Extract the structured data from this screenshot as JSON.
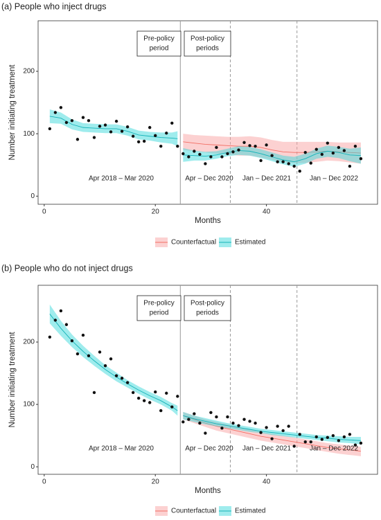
{
  "chart_data": [
    {
      "type": "line",
      "title": "(a) People who inject drugs",
      "xlabel": "Months",
      "ylabel": "Number initiating treatment",
      "xlim": [
        -1.1,
        60
      ],
      "ylim": [
        -13,
        281
      ],
      "xticks": [
        0,
        20,
        40
      ],
      "yticks": [
        0,
        100,
        200
      ],
      "policy_change": 24.5,
      "period_breaks": [
        33.5,
        45.5
      ],
      "pre_box": [
        "Pre-policy",
        "period"
      ],
      "post_box": [
        "Post-policy",
        "periods"
      ],
      "period_labels": [
        "Apr 2018 – Mar 2020",
        "Apr – Dec 2020",
        "Jan – Dec 2021",
        "Jan – Dec 2022"
      ],
      "observed": {
        "x": [
          1,
          2,
          3,
          4,
          5,
          6,
          7,
          8,
          9,
          10,
          11,
          12,
          13,
          14,
          15,
          16,
          17,
          18,
          19,
          20,
          21,
          22,
          23,
          24,
          25,
          26,
          27,
          28,
          29,
          30,
          31,
          32,
          33,
          34,
          35,
          36,
          37,
          38,
          39,
          40,
          41,
          42,
          43,
          44,
          45,
          46,
          47,
          48,
          49,
          50,
          51,
          52,
          53,
          54,
          55,
          56,
          57
        ],
        "values": [
          108,
          134,
          142,
          118,
          121,
          91,
          126,
          121,
          94,
          112,
          114,
          103,
          120,
          104,
          111,
          96,
          87,
          88,
          110,
          97,
          80,
          101,
          117,
          80,
          68,
          63,
          72,
          67,
          52,
          63,
          78,
          63,
          68,
          71,
          74,
          86,
          81,
          80,
          57,
          82,
          65,
          55,
          55,
          52,
          48,
          40,
          70,
          53,
          75,
          67,
          85,
          69,
          78,
          73,
          48,
          80,
          60
        ]
      },
      "series": [
        {
          "name": "Counterfactual",
          "color": "#f26d63",
          "fill": "#f9a3a3",
          "x": [
            25,
            27,
            29,
            31,
            33,
            35,
            37,
            39,
            41,
            43,
            45,
            47,
            49,
            51,
            53,
            55,
            57
          ],
          "values": [
            87,
            85,
            83,
            82,
            81,
            80,
            80,
            78,
            74,
            71,
            70,
            70,
            71,
            72,
            71,
            70,
            69
          ],
          "lower": [
            74,
            72,
            70,
            68,
            67,
            65,
            65,
            62,
            58,
            55,
            53,
            53,
            55,
            57,
            56,
            54,
            52
          ],
          "upper": [
            100,
            98,
            97,
            96,
            95,
            95,
            96,
            94,
            90,
            87,
            87,
            87,
            87,
            87,
            86,
            86,
            86
          ]
        },
        {
          "name": "Estimated",
          "color": "#14b3b8",
          "fill": "#3fd9dc",
          "x": [
            1,
            3,
            5,
            7,
            9,
            11,
            13,
            15,
            17,
            19,
            21,
            23,
            24,
            24.5,
            25,
            27,
            29,
            31,
            33,
            35,
            37,
            39,
            41,
            43,
            45,
            47,
            49,
            51,
            53,
            55,
            57
          ],
          "values": [
            128,
            125,
            115,
            110,
            109,
            108,
            108,
            104,
            98,
            96,
            94,
            93,
            92,
            null,
            66,
            65,
            64,
            66,
            70,
            73,
            72,
            68,
            63,
            58,
            55,
            60,
            68,
            72,
            70,
            66,
            65
          ],
          "lower": [
            117,
            116,
            107,
            103,
            102,
            101,
            101,
            97,
            91,
            89,
            86,
            84,
            80,
            null,
            55,
            57,
            57,
            60,
            64,
            66,
            65,
            61,
            56,
            51,
            47,
            52,
            60,
            63,
            61,
            56,
            52
          ],
          "upper": [
            139,
            134,
            123,
            117,
            116,
            115,
            115,
            111,
            105,
            103,
            102,
            102,
            104,
            null,
            77,
            73,
            71,
            72,
            76,
            80,
            79,
            75,
            70,
            65,
            63,
            68,
            76,
            81,
            79,
            76,
            78
          ]
        }
      ]
    },
    {
      "type": "line",
      "title": "(b) People who do not inject drugs",
      "xlabel": "Months",
      "ylabel": "Number initiating treatment",
      "xlim": [
        -1.1,
        60
      ],
      "ylim": [
        -12,
        291
      ],
      "xticks": [
        0,
        20,
        40
      ],
      "yticks": [
        0,
        100,
        200
      ],
      "policy_change": 24.5,
      "period_breaks": [
        33.5,
        45.5
      ],
      "pre_box": [
        "Pre-policy",
        "period"
      ],
      "post_box": [
        "Post-policy",
        "periods"
      ],
      "period_labels": [
        "Apr 2018 – Mar 2020",
        "Apr – Dec 2020",
        "Jan – Dec 2021",
        "Jan – Dec 2022"
      ],
      "observed": {
        "x": [
          1,
          2,
          3,
          4,
          5,
          6,
          7,
          8,
          9,
          10,
          11,
          12,
          13,
          14,
          15,
          16,
          17,
          18,
          19,
          20,
          21,
          22,
          23,
          24,
          25,
          26,
          27,
          28,
          29,
          30,
          31,
          32,
          33,
          34,
          35,
          36,
          37,
          38,
          39,
          40,
          41,
          42,
          43,
          44,
          45,
          46,
          47,
          48,
          49,
          50,
          51,
          52,
          53,
          54,
          55,
          56,
          57
        ],
        "values": [
          208,
          235,
          250,
          228,
          202,
          181,
          211,
          178,
          119,
          184,
          162,
          173,
          146,
          142,
          135,
          119,
          110,
          106,
          103,
          120,
          90,
          118,
          96,
          113,
          72,
          76,
          85,
          70,
          54,
          87,
          80,
          62,
          80,
          70,
          66,
          76,
          73,
          70,
          55,
          63,
          45,
          65,
          58,
          65,
          33,
          52,
          40,
          40,
          48,
          44,
          47,
          50,
          42,
          48,
          52,
          35,
          38
        ]
      },
      "series": [
        {
          "name": "Counterfactual",
          "color": "#f26d63",
          "fill": "#f9a3a3",
          "x": [
            25,
            27,
            29,
            31,
            33,
            35,
            37,
            39,
            41,
            43,
            45,
            47,
            49,
            51,
            53,
            55,
            57
          ],
          "values": [
            82,
            76,
            70,
            65,
            61,
            57,
            53,
            49,
            46,
            43,
            40,
            37,
            34,
            31,
            29,
            27,
            25
          ],
          "lower": [
            76,
            70,
            64,
            58,
            54,
            50,
            46,
            42,
            39,
            36,
            33,
            30,
            27,
            24,
            21,
            19,
            17
          ],
          "upper": [
            88,
            82,
            76,
            72,
            68,
            64,
            60,
            56,
            53,
            50,
            47,
            44,
            41,
            38,
            36,
            34,
            32
          ]
        },
        {
          "name": "Estimated",
          "color": "#14b3b8",
          "fill": "#3fd9dc",
          "x": [
            1,
            3,
            5,
            7,
            9,
            11,
            13,
            15,
            17,
            19,
            21,
            23,
            24,
            24.5,
            25,
            27,
            29,
            31,
            33,
            35,
            37,
            39,
            41,
            43,
            45,
            47,
            49,
            51,
            53,
            55,
            57
          ],
          "values": [
            245,
            222,
            202,
            185,
            170,
            156,
            144,
            133,
            123,
            114,
            106,
            96,
            90,
            null,
            82,
            77,
            73,
            69,
            66,
            63,
            60,
            57,
            55,
            53,
            51,
            49,
            47,
            46,
            44,
            43,
            42
          ],
          "lower": [
            230,
            210,
            192,
            176,
            162,
            149,
            137,
            127,
            117,
            108,
            100,
            90,
            82,
            null,
            76,
            72,
            68,
            65,
            62,
            59,
            56,
            54,
            51,
            49,
            47,
            45,
            43,
            41,
            39,
            38,
            36
          ],
          "upper": [
            260,
            234,
            212,
            194,
            178,
            163,
            151,
            139,
            129,
            120,
            112,
            102,
            98,
            null,
            88,
            82,
            78,
            74,
            70,
            67,
            64,
            61,
            59,
            57,
            55,
            53,
            51,
            50,
            49,
            48,
            48
          ]
        }
      ]
    }
  ]
}
